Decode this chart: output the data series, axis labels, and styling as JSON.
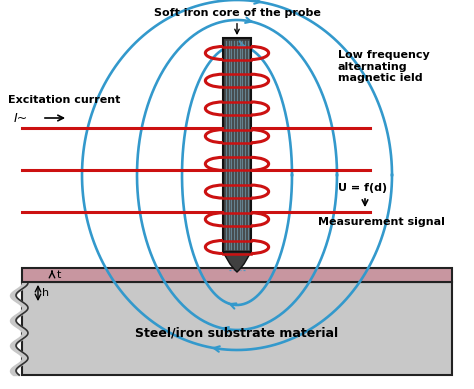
{
  "bg_color": "#ffffff",
  "substrate_color": "#c8c8c8",
  "paint_color": "#c896a0",
  "probe_body_color": "#404040",
  "probe_stripe_color": "#6a8a9a",
  "coil_color": "#cc1111",
  "field_color": "#3399cc",
  "exc_color": "#cc1111",
  "labels": {
    "probe": "Soft iron core of the probe",
    "excitation": "Excitation current",
    "current_sym": "I~",
    "low_freq": "Low frequency\nalternating\nmagnetic ield",
    "ufunc": "U = f(d)",
    "measurement": "Measurement signal",
    "substrate": "Steel/iron substrate material",
    "t": "t",
    "h": "h"
  }
}
